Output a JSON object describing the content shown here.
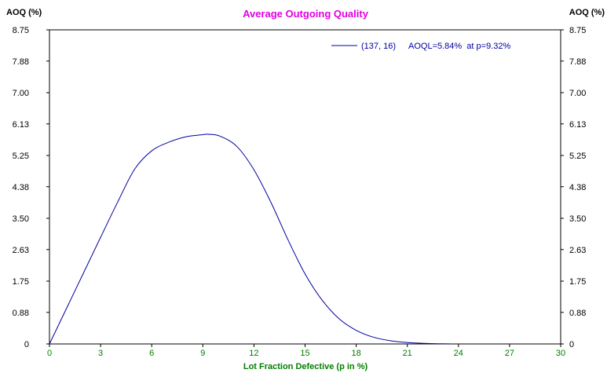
{
  "chart_data": {
    "type": "line",
    "title": "Average Outgoing Quality",
    "xlabel": "Lot Fraction Defective (p in %)",
    "ylabel_left": "AOQ (%)",
    "ylabel_right": "AOQ (%)",
    "xlim": [
      0,
      30
    ],
    "ylim": [
      0,
      8.75
    ],
    "x_ticks": [
      "0",
      "3",
      "6",
      "9",
      "12",
      "15",
      "18",
      "21",
      "24",
      "27",
      "30"
    ],
    "y_ticks": [
      "0",
      "0.88",
      "1.75",
      "2.63",
      "3.50",
      "4.38",
      "5.25",
      "6.13",
      "7.00",
      "7.88",
      "8.75"
    ],
    "grid": false,
    "legend_position": "top-right",
    "legend_text": "(137, 16)",
    "annotation": "AOQL=5.84%  at p=9.32%",
    "series": [
      {
        "name": "(137, 16)",
        "color": "#0000a0",
        "x": [
          0,
          1,
          2,
          3,
          4,
          5,
          6,
          7,
          8,
          9,
          9.32,
          10,
          11,
          12,
          13,
          14,
          15,
          16,
          17,
          18,
          19,
          20,
          21,
          22,
          23,
          23.5
        ],
        "y": [
          0,
          0.99,
          1.98,
          2.97,
          3.95,
          4.87,
          5.38,
          5.62,
          5.77,
          5.83,
          5.84,
          5.79,
          5.5,
          4.85,
          3.94,
          2.9,
          1.95,
          1.22,
          0.7,
          0.38,
          0.19,
          0.09,
          0.04,
          0.015,
          0.005,
          0.002
        ]
      }
    ],
    "colors": {
      "title": "#e000e0",
      "axis_tick_x": "#008000",
      "xlabel": "#008000",
      "legend_text": "#0000a0",
      "line": "#0000a0"
    }
  }
}
